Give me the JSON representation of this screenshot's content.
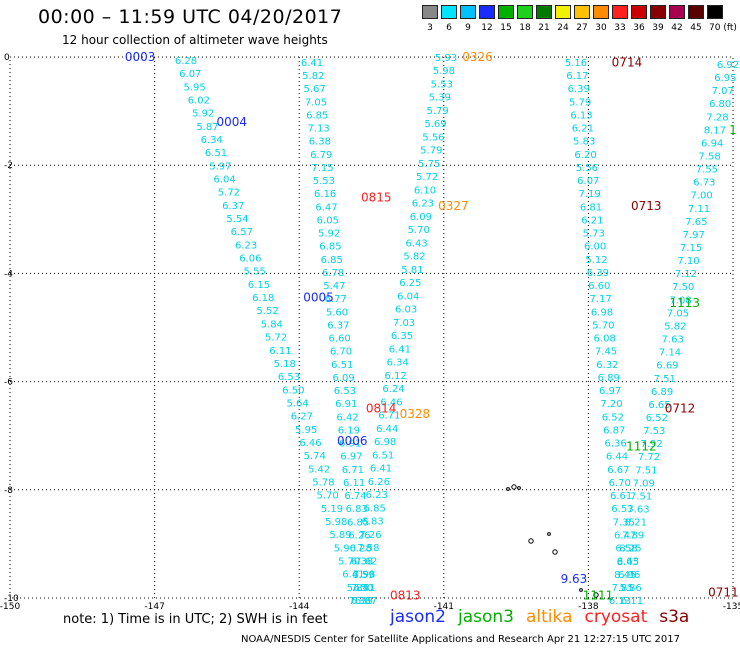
{
  "header": {
    "title": "00:00  – 11:59 UTC 04/20/2017",
    "subtitle": "12 hour collection of altimeter wave heights"
  },
  "color_scale": {
    "labels": [
      "3",
      "6",
      "9",
      "12",
      "15",
      "18",
      "21",
      "24",
      "27",
      "30",
      "33",
      "36",
      "39",
      "42",
      "45",
      "70 (ft)"
    ],
    "colors": [
      "#888888",
      "#00e5ff",
      "#00bfff",
      "#1a2bff",
      "#00b000",
      "#1fd01f",
      "#007a00",
      "#f2f200",
      "#ffc000",
      "#ff8c00",
      "#ff2020",
      "#cc0000",
      "#880000",
      "#aa0050",
      "#5a0000",
      "#000000"
    ]
  },
  "axes": {
    "lon_ticks": [
      "-150",
      "-147",
      "-144",
      "-141",
      "-138",
      "-135"
    ],
    "lat_ticks": [
      "0",
      "-2",
      "-4",
      "-6",
      "-8",
      "-10"
    ]
  },
  "footnote": "note:  1) Time is in UTC;  2) SWH is in feet",
  "credit": "NOAA/NESDIS Center for Satellite Applications and Research     Apr 21 12:27:15 UTC 2017",
  "legend": [
    {
      "name": "jason2",
      "color": "#1a2bff"
    },
    {
      "name": "jason3",
      "color": "#00b000"
    },
    {
      "name": "altika",
      "color": "#ff8c00"
    },
    {
      "name": "cryosat",
      "color": "#ff2020"
    },
    {
      "name": "s3a",
      "color": "#880000"
    }
  ],
  "tracks": [
    {
      "id": "t0003",
      "values": [
        "6.28",
        "6.07",
        "5.95",
        "6.02",
        "5.92",
        "5.87",
        "6.34",
        "6.51",
        "5.97",
        "6.04",
        "5.72",
        "6.37",
        "5.54",
        "6.57",
        "6.23",
        "6.06",
        "5.55",
        "6.15",
        "6.18",
        "5.52",
        "5.84",
        "5.72",
        "6.11",
        "5.18",
        "6.53",
        "6.50",
        "5.64",
        "6.27",
        "5.95",
        "6.46",
        "5.74",
        "5.42",
        "5.78",
        "5.70",
        "5.19",
        "5.98",
        "5.89",
        "5.90",
        "5.70",
        "6.41",
        "5.84",
        "6.33"
      ]
    },
    {
      "id": "t0326",
      "values": [
        "5.93",
        "5.98",
        "5.53",
        "5.39",
        "5.79",
        "5.69",
        "5.56",
        "5.79",
        "5.75",
        "5.72",
        "6.10",
        "6.23",
        "6.09",
        "5.70",
        "6.43",
        "5.82",
        "5.81",
        "6.25",
        "6.04",
        "6.03",
        "7.03",
        "6.35",
        "6.41",
        "6.34",
        "6.12",
        "6.24",
        "6.46",
        "6.71",
        "6.44",
        "6.98",
        "6.51",
        "6.41",
        "6.26",
        "6.23",
        "6.85",
        "6.83",
        "7.26",
        "7.58",
        "7.62",
        "7.98",
        "7.50",
        "7.36"
      ]
    },
    {
      "id": "t0714",
      "values": [
        "5.16",
        "6.17",
        "6.39",
        "5.79",
        "6.13",
        "6.21",
        "5.83",
        "6.20",
        "5.56",
        "6.07",
        "7.19",
        "6.81",
        "6.21",
        "5.73",
        "6.00",
        "5.12",
        "6.39",
        "6.60",
        "7.17",
        "6.98",
        "5.70",
        "6.08",
        "7.45",
        "6.32",
        "6.89",
        "6.97",
        "7.20",
        "6.52",
        "6.87",
        "6.36",
        "6.44",
        "6.67",
        "6.70",
        "6.61",
        "6.53",
        "7.35",
        "6.47",
        "6.58",
        "6.63",
        "6.96",
        "5.86",
        "6.11"
      ]
    },
    {
      "id": "t0711",
      "values": [
        "6.92",
        "6.95",
        "7.07",
        "6.80",
        "7.28",
        "8.17",
        "6.94",
        "7.58",
        "7.55",
        "6.73",
        "7.00",
        "7.11",
        "7.65",
        "7.97",
        "7.15",
        "7.10",
        "7.12",
        "7.50",
        "7.08",
        "7.05",
        "5.82",
        "7.63",
        "7.14",
        "6.69",
        "7.51",
        "6.89",
        "6.65",
        "6.52",
        "7.53",
        "7.92",
        "7.72",
        "7.51",
        "7.09",
        "7.51",
        "7.63",
        "8.21",
        "7.89",
        "8.25",
        "8.45",
        "8.45",
        "7.85",
        "6.13"
      ]
    },
    {
      "id": "t0002",
      "values": [
        "6.41",
        "5.82",
        "5.67",
        "7.05",
        "6.85",
        "7.13",
        "6.38",
        "6.79",
        "7.15",
        "5.53",
        "6.16",
        "6.47",
        "6.05",
        "5.92",
        "6.85",
        "6.85",
        "6.78",
        "5.47",
        "6.77",
        "5.60",
        "6.37",
        "6.60",
        "6.70",
        "6.51",
        "6.09",
        "6.53",
        "6.91",
        "6.42",
        "6.19",
        "6.91",
        "6.97",
        "6.71",
        "6.11",
        "6.74",
        "6.83",
        "6.85",
        "6.26",
        "6.28",
        "6.38",
        "6.59",
        "6.51",
        "6.37"
      ]
    }
  ],
  "labels": {
    "jason2": [
      {
        "text": "0003",
        "lon": -147.3,
        "lat": 0.0
      },
      {
        "text": "0004",
        "lon": -145.4,
        "lat": -1.2
      },
      {
        "text": "0005",
        "lon": -143.6,
        "lat": -4.45
      },
      {
        "text": "0006",
        "lon": -142.9,
        "lat": -7.1
      },
      {
        "text": "9.63",
        "lon": -138.3,
        "lat": -9.65
      }
    ],
    "jason3": [
      {
        "text": "1",
        "lon": -135.0,
        "lat": -1.35
      },
      {
        "text": "1113",
        "lon": -136.0,
        "lat": -4.55
      },
      {
        "text": "1112",
        "lon": -136.9,
        "lat": -7.2
      },
      {
        "text": "1111",
        "lon": -137.8,
        "lat": -9.95
      }
    ],
    "altika": [
      {
        "text": "0326",
        "lon": -140.3,
        "lat": 0.0
      },
      {
        "text": "0327",
        "lon": -140.8,
        "lat": -2.75
      },
      {
        "text": "0328",
        "lon": -141.6,
        "lat": -6.6
      }
    ],
    "cryosat": [
      {
        "text": "0815",
        "lon": -142.4,
        "lat": -2.6
      },
      {
        "text": "0814",
        "lon": -142.3,
        "lat": -6.5
      },
      {
        "text": "0813",
        "lon": -141.8,
        "lat": -9.95
      }
    ],
    "s3a": [
      {
        "text": "0714",
        "lon": -137.2,
        "lat": -0.1
      },
      {
        "text": "0713",
        "lon": -136.8,
        "lat": -2.75
      },
      {
        "text": "0712",
        "lon": -136.1,
        "lat": -6.5
      },
      {
        "text": "0711",
        "lon": -135.2,
        "lat": -9.9
      }
    ]
  }
}
